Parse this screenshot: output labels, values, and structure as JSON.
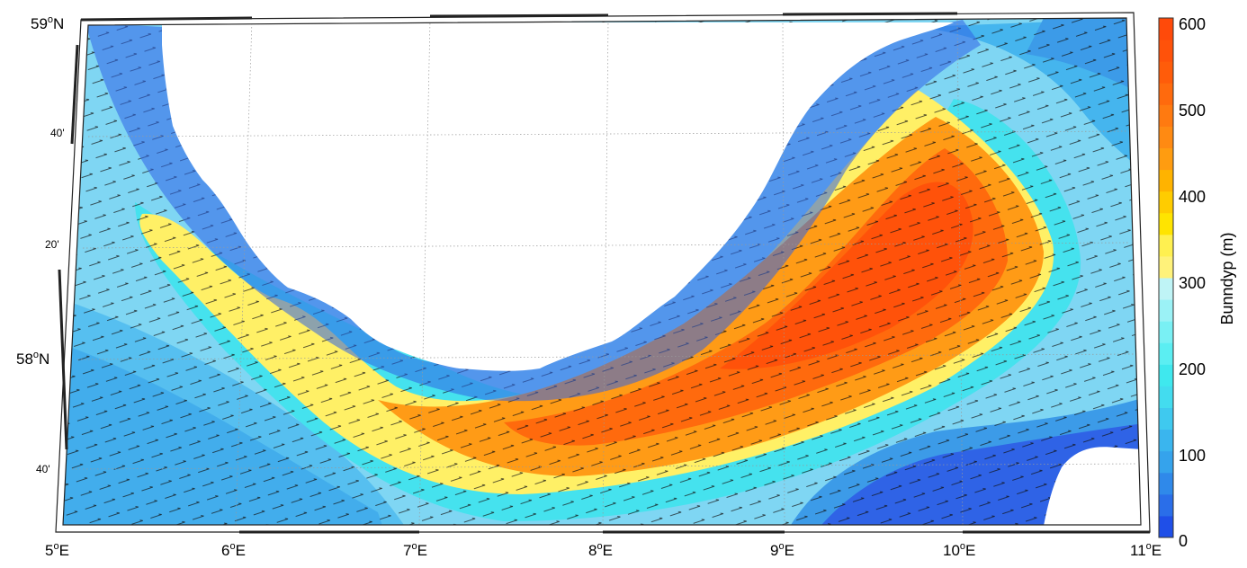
{
  "map": {
    "x_labels": [
      {
        "deg": "5",
        "hemi": "E"
      },
      {
        "deg": "6",
        "hemi": "E"
      },
      {
        "deg": "7",
        "hemi": "E"
      },
      {
        "deg": "8",
        "hemi": "E"
      },
      {
        "deg": "9",
        "hemi": "E"
      },
      {
        "deg": "10",
        "hemi": "E"
      },
      {
        "deg": "11",
        "hemi": "E"
      }
    ],
    "y_major_labels": [
      {
        "deg": "59",
        "hemi": "N"
      },
      {
        "deg": "58",
        "hemi": "N"
      }
    ],
    "y_minor_labels": [
      "40'",
      "20'",
      "40'"
    ],
    "colors": {
      "land": "#ffffff",
      "deep_blue": "#2f63e6",
      "shelf_blue": "#3c9be8",
      "light_blue": "#7fd6f3",
      "cyan": "#45e2ee",
      "yellow": "#fff066",
      "orange": "#ff9b16",
      "red_orange": "#ff5a0a"
    }
  },
  "colorbar": {
    "title": "Bunndyp (m)",
    "tick_labels": [
      "600",
      "500",
      "400",
      "300",
      "200",
      "100",
      "0"
    ],
    "levels": [
      0,
      25,
      50,
      75,
      100,
      125,
      150,
      175,
      200,
      225,
      250,
      275,
      300,
      325,
      350,
      375,
      400,
      425,
      450,
      475,
      500,
      525,
      550,
      575,
      600
    ],
    "colors": [
      "#1f4fe8",
      "#2a6ee9",
      "#2f89ea",
      "#35a3ec",
      "#3ab5ee",
      "#3fc9ef",
      "#43dcef",
      "#3fe8ee",
      "#5beef2",
      "#79f0f4",
      "#9bf2f6",
      "#bff4f6",
      "#fff27a",
      "#fff050",
      "#ffe400",
      "#ffcc00",
      "#ffb300",
      "#ff9c10",
      "#ff8a12",
      "#ff7a10",
      "#ff6a0d",
      "#ff5c0a",
      "#ff520a",
      "#ff4a0a"
    ]
  }
}
